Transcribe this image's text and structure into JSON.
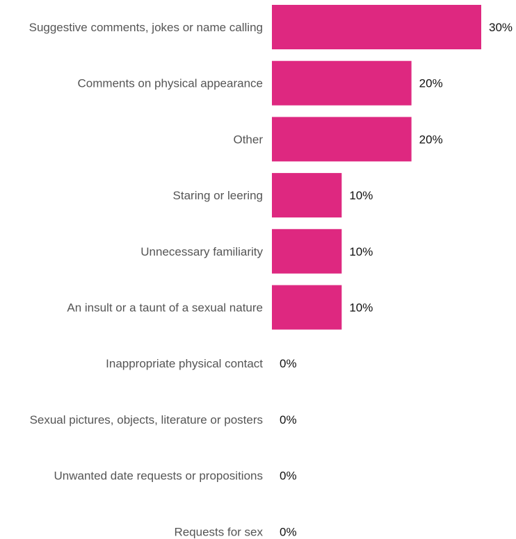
{
  "chart_data": {
    "type": "bar",
    "orientation": "horizontal",
    "categories": [
      "Suggestive comments, jokes or name calling",
      "Comments on physical appearance",
      "Other",
      "Staring or leering",
      "Unnecessary familiarity",
      "An insult or a taunt of a sexual nature",
      "Inappropriate physical contact",
      "Sexual pictures, objects, literature or posters",
      "Unwanted date requests or propositions",
      "Requests for sex"
    ],
    "values": [
      30,
      20,
      20,
      10,
      10,
      10,
      0,
      0,
      0,
      0
    ],
    "value_labels": [
      "30%",
      "20%",
      "20%",
      "10%",
      "10%",
      "10%",
      "0%",
      "0%",
      "0%",
      "0%"
    ],
    "xlim": [
      0,
      30
    ],
    "unit": "%",
    "grid": false,
    "legend": "none",
    "bar_color": "#de2880"
  }
}
